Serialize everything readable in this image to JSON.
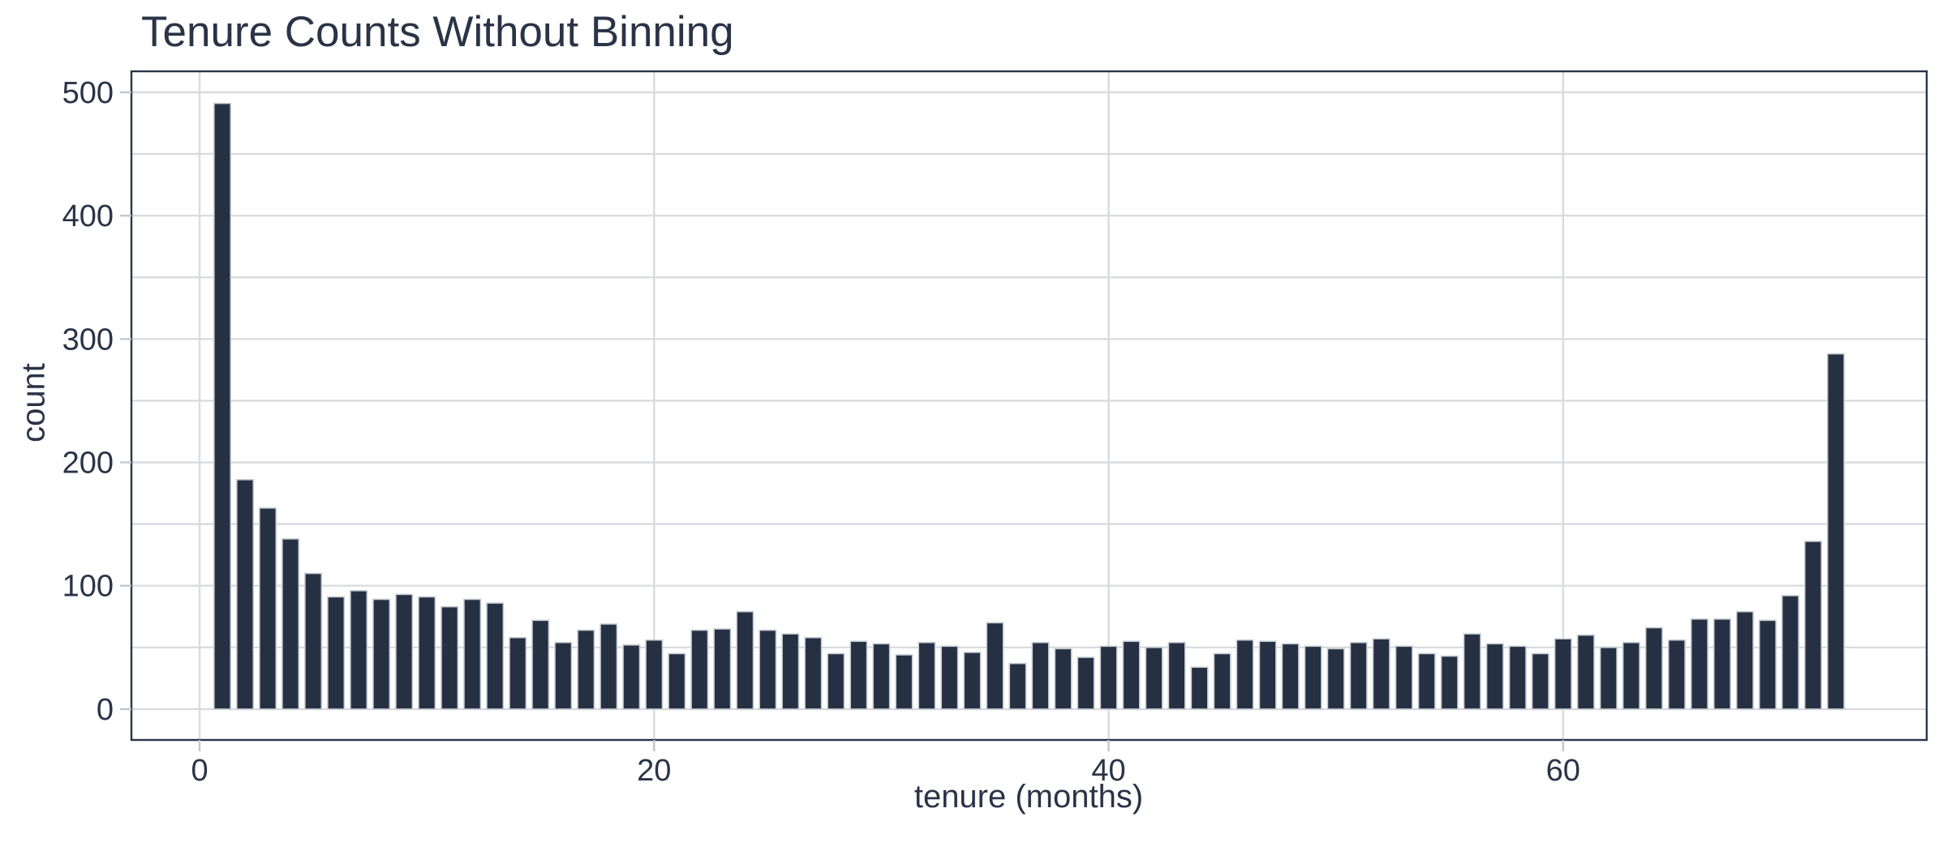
{
  "chart_data": {
    "type": "bar",
    "title": "Tenure Counts Without Binning",
    "xlabel": "tenure (months)",
    "ylabel": "count",
    "x": [
      1,
      2,
      3,
      4,
      5,
      6,
      7,
      8,
      9,
      10,
      11,
      12,
      13,
      14,
      15,
      16,
      17,
      18,
      19,
      20,
      21,
      22,
      23,
      24,
      25,
      26,
      27,
      28,
      29,
      30,
      31,
      32,
      33,
      34,
      35,
      36,
      37,
      38,
      39,
      40,
      41,
      42,
      43,
      44,
      45,
      46,
      47,
      48,
      49,
      50,
      51,
      52,
      53,
      54,
      55,
      56,
      57,
      58,
      59,
      60,
      61,
      62,
      63,
      64,
      65,
      66,
      67,
      68,
      69,
      70,
      71,
      72
    ],
    "values": [
      491,
      186,
      163,
      138,
      110,
      91,
      96,
      89,
      93,
      91,
      83,
      89,
      86,
      58,
      72,
      54,
      64,
      69,
      52,
      56,
      45,
      64,
      65,
      79,
      64,
      61,
      58,
      45,
      55,
      53,
      44,
      54,
      51,
      46,
      70,
      37,
      54,
      49,
      42,
      51,
      55,
      50,
      54,
      34,
      45,
      56,
      55,
      53,
      51,
      49,
      54,
      57,
      51,
      45,
      43,
      61,
      53,
      51,
      45,
      57,
      60,
      50,
      54,
      66,
      56,
      73,
      73,
      79,
      72,
      92,
      136,
      288
    ],
    "x_ticks": [
      0,
      20,
      40,
      60
    ],
    "y_ticks": [
      0,
      100,
      200,
      300,
      400,
      500
    ],
    "y_grid_step": 50,
    "xlim": [
      -3,
      76
    ],
    "ylim": [
      -25,
      517
    ],
    "bar_width": 0.73,
    "grid": true,
    "legend_position": "none",
    "colors": {
      "bar": "#253143",
      "bar_edge": "#c7ccd3",
      "grid": "#d9dbde",
      "tick": "#c2c7cd",
      "axis": "#2a3447",
      "text": "#2a3447",
      "background": "#ffffff"
    }
  }
}
